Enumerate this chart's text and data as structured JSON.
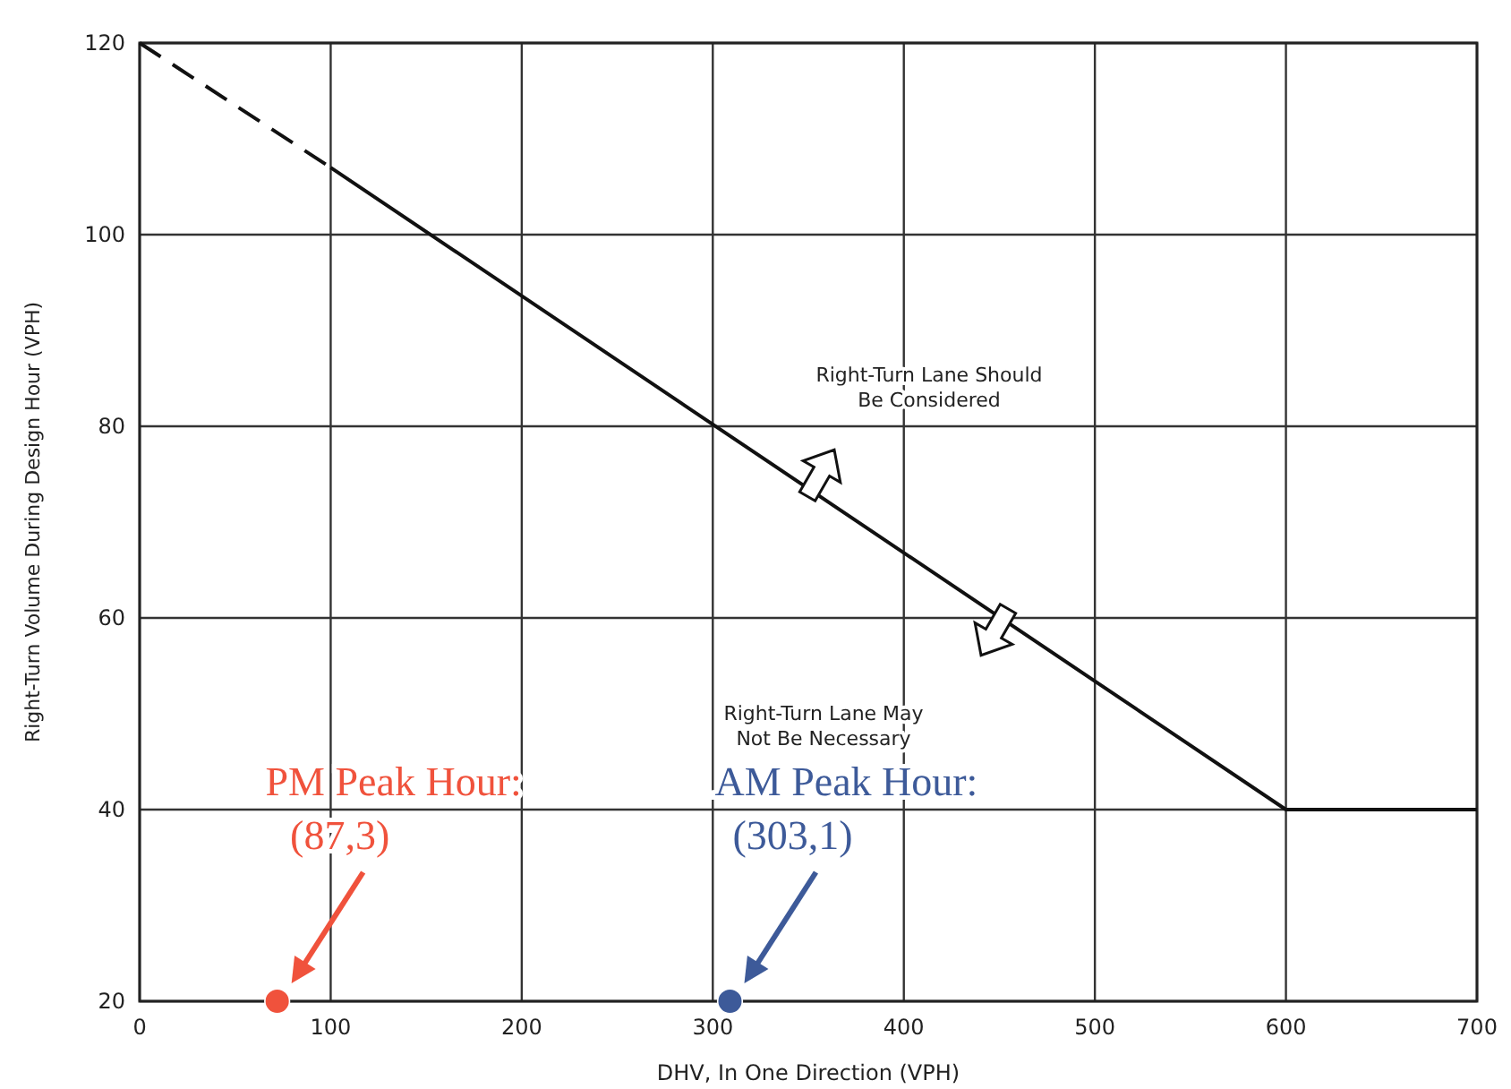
{
  "chart_data": {
    "type": "line",
    "xlabel": "DHV, In One Direction (VPH)",
    "ylabel": "Right-Turn Volume During Design Hour (VPH)",
    "xlim": [
      0,
      700
    ],
    "xticks": [
      0,
      100,
      200,
      300,
      400,
      500,
      600,
      700
    ],
    "ylim": [
      20,
      120
    ],
    "yticks": [
      20,
      40,
      60,
      80,
      100,
      120
    ],
    "grid": true,
    "series": [
      {
        "type": "line",
        "color": "#111111",
        "line_style": "dashed",
        "x": [
          0,
          100
        ],
        "values": [
          120,
          107
        ]
      },
      {
        "type": "line",
        "color": "#111111",
        "line_style": "solid",
        "x": [
          100,
          600,
          700
        ],
        "values": [
          107,
          40,
          40
        ]
      },
      {
        "type": "scatter",
        "color": "#f0523c",
        "marker": "circle",
        "x": [
          72
        ],
        "values": [
          20
        ]
      },
      {
        "type": "scatter",
        "color": "#3d5a99",
        "marker": "circle",
        "x": [
          309
        ],
        "values": [
          20
        ]
      }
    ],
    "annotations": [
      "Right-Turn Lane Should\nBe Considered",
      "Right-Turn Lane May\nNot Be Necessary",
      "PM Peak Hour:\n(87,3)",
      "AM Peak Hour:\n(303,1)"
    ]
  }
}
